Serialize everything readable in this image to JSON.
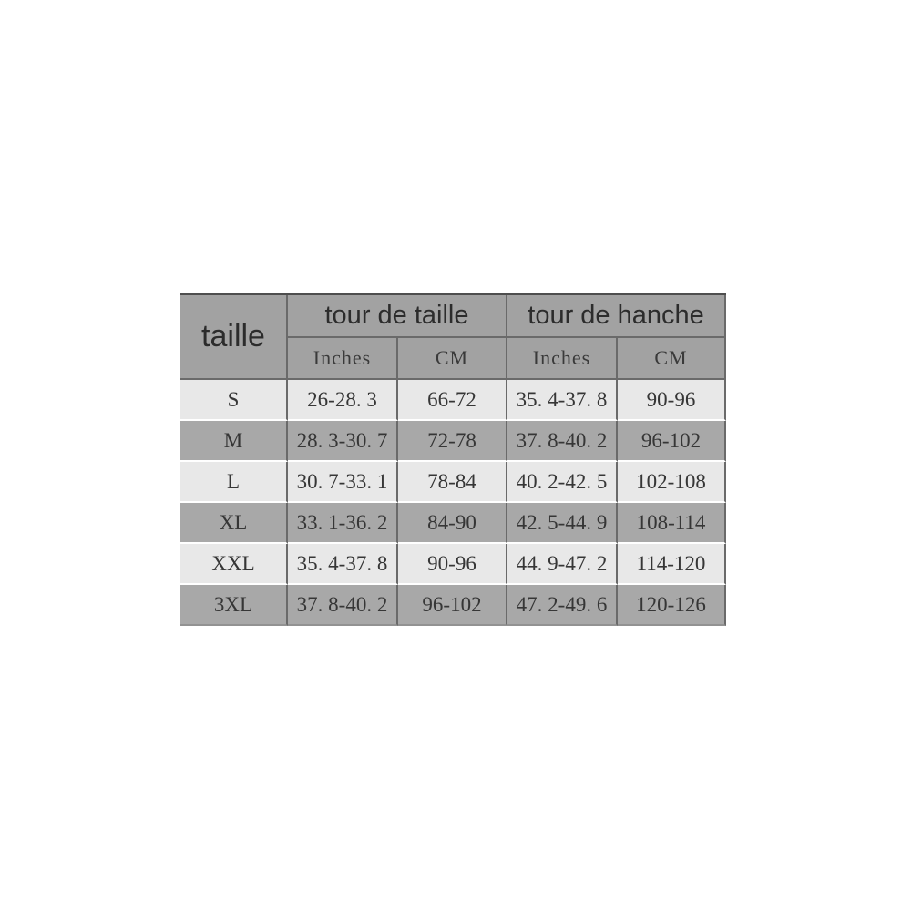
{
  "page": {
    "background_color": "#ffffff"
  },
  "table": {
    "corner_header": "taille",
    "groups": [
      {
        "label": "tour de taille"
      },
      {
        "label": "tour de hanche"
      }
    ],
    "sub_headers": [
      "Inches",
      "CM",
      "Inches",
      "CM"
    ],
    "rows": [
      {
        "size": "S",
        "waist_in": "26-28. 3",
        "waist_cm": "66-72",
        "hip_in": "35. 4-37. 8",
        "hip_cm": "90-96"
      },
      {
        "size": "M",
        "waist_in": "28. 3-30. 7",
        "waist_cm": "72-78",
        "hip_in": "37. 8-40. 2",
        "hip_cm": "96-102"
      },
      {
        "size": "L",
        "waist_in": "30. 7-33. 1",
        "waist_cm": "78-84",
        "hip_in": "40. 2-42. 5",
        "hip_cm": "102-108"
      },
      {
        "size": "XL",
        "waist_in": "33. 1-36. 2",
        "waist_cm": "84-90",
        "hip_in": "42. 5-44. 9",
        "hip_cm": "108-114"
      },
      {
        "size": "XXL",
        "waist_in": "35. 4-37. 8",
        "waist_cm": "90-96",
        "hip_in": "44. 9-47. 2",
        "hip_cm": "114-120"
      },
      {
        "size": "3XL",
        "waist_in": "37. 8-40. 2",
        "waist_cm": "96-102",
        "hip_in": "47. 2-49. 6",
        "hip_cm": "120-126"
      }
    ],
    "colors": {
      "header_bg": "#a2a2a2",
      "row_light_bg": "#e8e8e8",
      "row_dark_bg": "#a8a8a8",
      "rule_dark": "#6a6a6a",
      "rule_white": "#ffffff",
      "table_top_border": "#4e4e4e",
      "header_text": "#2c2c2c",
      "data_text": "#363636"
    }
  },
  "chart_data": {
    "type": "table",
    "title": "",
    "columns": [
      "taille",
      "tour de taille Inches",
      "tour de taille CM",
      "tour de hanche Inches",
      "tour de hanche CM"
    ],
    "rows": [
      [
        "S",
        "26-28.3",
        "66-72",
        "35.4-37.8",
        "90-96"
      ],
      [
        "M",
        "28.3-30.7",
        "72-78",
        "37.8-40.2",
        "96-102"
      ],
      [
        "L",
        "30.7-33.1",
        "78-84",
        "40.2-42.5",
        "102-108"
      ],
      [
        "XL",
        "33.1-36.2",
        "84-90",
        "42.5-44.9",
        "108-114"
      ],
      [
        "XXL",
        "35.4-37.8",
        "90-96",
        "44.9-47.2",
        "114-120"
      ],
      [
        "3XL",
        "37.8-40.2",
        "96-102",
        "47.2-49.6",
        "120-126"
      ]
    ],
    "layout": {
      "grid": "on",
      "header_levels": 2
    }
  }
}
